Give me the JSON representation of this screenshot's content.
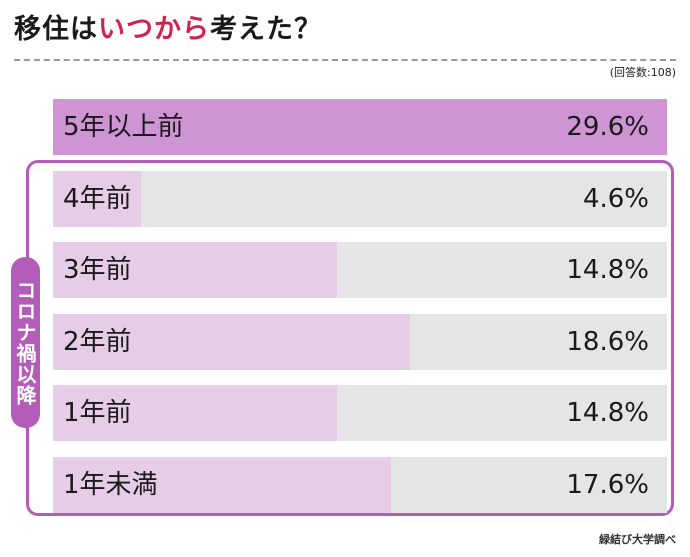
{
  "title": {
    "prefix": "移住は",
    "highlight": "いつから",
    "suffix": "考えた？"
  },
  "sample_note": "(回答数:108)",
  "group_label": "コロナ禍以降",
  "source": "緑結び大学調べ",
  "chart_data": {
    "type": "bar",
    "orientation": "horizontal",
    "title": "移住はいつから考えた？",
    "categories": [
      "5年以上前",
      "4年前",
      "3年前",
      "2年前",
      "1年前",
      "1年未満"
    ],
    "values": [
      29.6,
      4.6,
      14.8,
      18.6,
      14.8,
      17.6
    ],
    "value_labels": [
      "29.6%",
      "4.6%",
      "14.8%",
      "18.6%",
      "14.8%",
      "17.6%"
    ],
    "unit": "%",
    "xlim": [
      0,
      32
    ],
    "grid": false,
    "legend": "none",
    "highlight_color": "#cf94d4",
    "bar_color": "#e6cce6",
    "track_color": "#e5e5e5",
    "group_color": "#b45cba",
    "grouped_categories": [
      "4年前",
      "3年前",
      "2年前",
      "1年前",
      "1年未満"
    ]
  }
}
